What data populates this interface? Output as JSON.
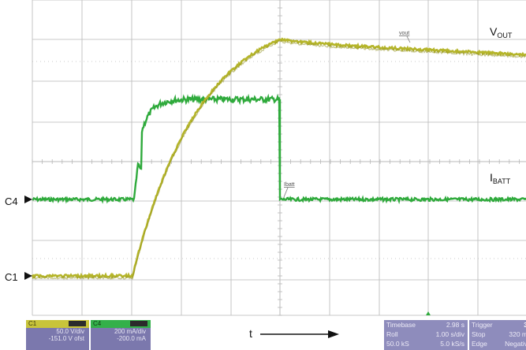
{
  "traces": {
    "vout_label": "V",
    "vout_sub": "OUT",
    "ibatt_label": "I",
    "ibatt_sub": "BATT",
    "vout_tag": "vout",
    "ibatt_tag": "Ibatt",
    "c4_marker": "C4",
    "c1_marker": "C1",
    "time_axis": "t",
    "colors": {
      "vout": "#b5b52a",
      "ibatt": "#2faa3c",
      "grid": "#b8b8b8"
    }
  },
  "channels": [
    {
      "name": "C1",
      "scale": "50.0 V/div",
      "offset": "-151.0 V ofst",
      "header_color": "#c8c43a"
    },
    {
      "name": "C4",
      "scale": "200 mA/div",
      "offset": "-200.0 mA",
      "header_color": "#34b04a"
    }
  ],
  "timebase": {
    "title": "Timebase",
    "value": "2.98 s",
    "mode": "Roll",
    "scale": "1.00 s/div",
    "samples": "50.0 kS",
    "rate": "5.0 kS/s"
  },
  "trigger": {
    "title": "Trigger",
    "extra": "3",
    "mode": "Stop",
    "level": "320 m",
    "type": "Edge",
    "slope": "Negativ"
  }
}
